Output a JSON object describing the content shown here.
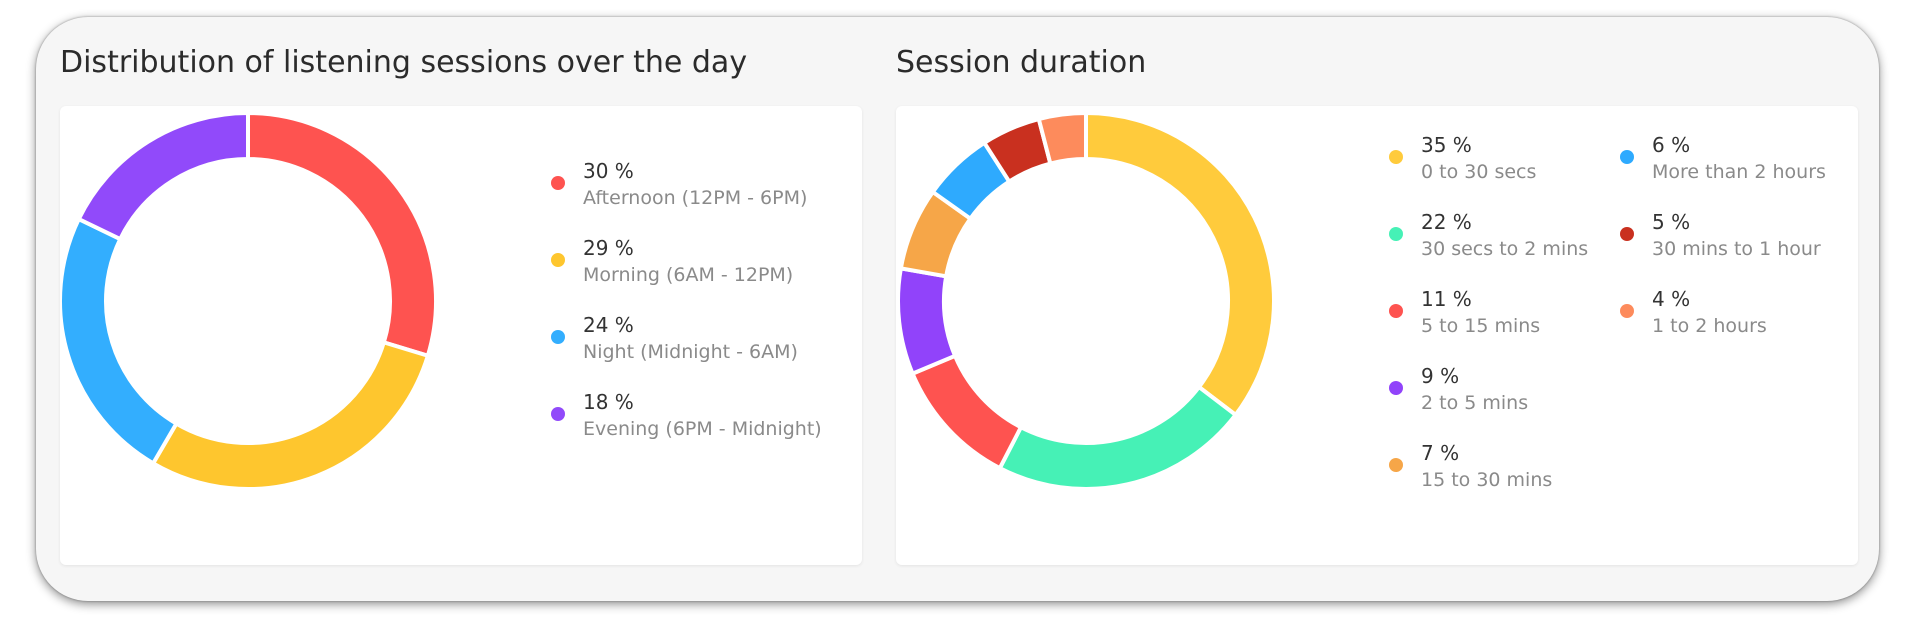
{
  "chart_data": [
    {
      "type": "pie",
      "title": "Distribution of listening sessions over the day",
      "slices": [
        {
          "percent_label": "30 %",
          "label": "Afternoon (12PM - 6PM)",
          "value": 30,
          "color": "#fe5350"
        },
        {
          "percent_label": "29 %",
          "label": "Morning (6AM - 12PM)",
          "value": 29,
          "color": "#fec62e"
        },
        {
          "percent_label": "24 %",
          "label": "Night (Midnight - 6AM)",
          "value": 24,
          "color": "#33aefe"
        },
        {
          "percent_label": "18 %",
          "label": "Evening (6PM - Midnight)",
          "value": 18,
          "color": "#914afa"
        }
      ],
      "legend_position": "right"
    },
    {
      "type": "pie",
      "title": "Session duration",
      "slices": [
        {
          "percent_label": "35 %",
          "label": "0 to 30 secs",
          "value": 35,
          "color": "#ffcb3c"
        },
        {
          "percent_label": "22 %",
          "label": "30 secs to 2 mins",
          "value": 22,
          "color": "#46f1b6"
        },
        {
          "percent_label": "11 %",
          "label": "5 to 15 mins",
          "value": 11,
          "color": "#fe5350"
        },
        {
          "percent_label": "9 %",
          "label": "2 to 5 mins",
          "value": 9,
          "color": "#9143fa"
        },
        {
          "percent_label": "7 %",
          "label": "15 to 30 mins",
          "value": 7,
          "color": "#f6a648"
        },
        {
          "percent_label": "6 %",
          "label": "More than 2 hours",
          "value": 6,
          "color": "#2eaafe"
        },
        {
          "percent_label": "5 %",
          "label": "30 mins to 1 hour",
          "value": 5,
          "color": "#c9301f"
        },
        {
          "percent_label": "4 %",
          "label": "1 to 2 hours",
          "value": 4,
          "color": "#fd8b5c"
        }
      ],
      "legend_position": "right"
    }
  ]
}
